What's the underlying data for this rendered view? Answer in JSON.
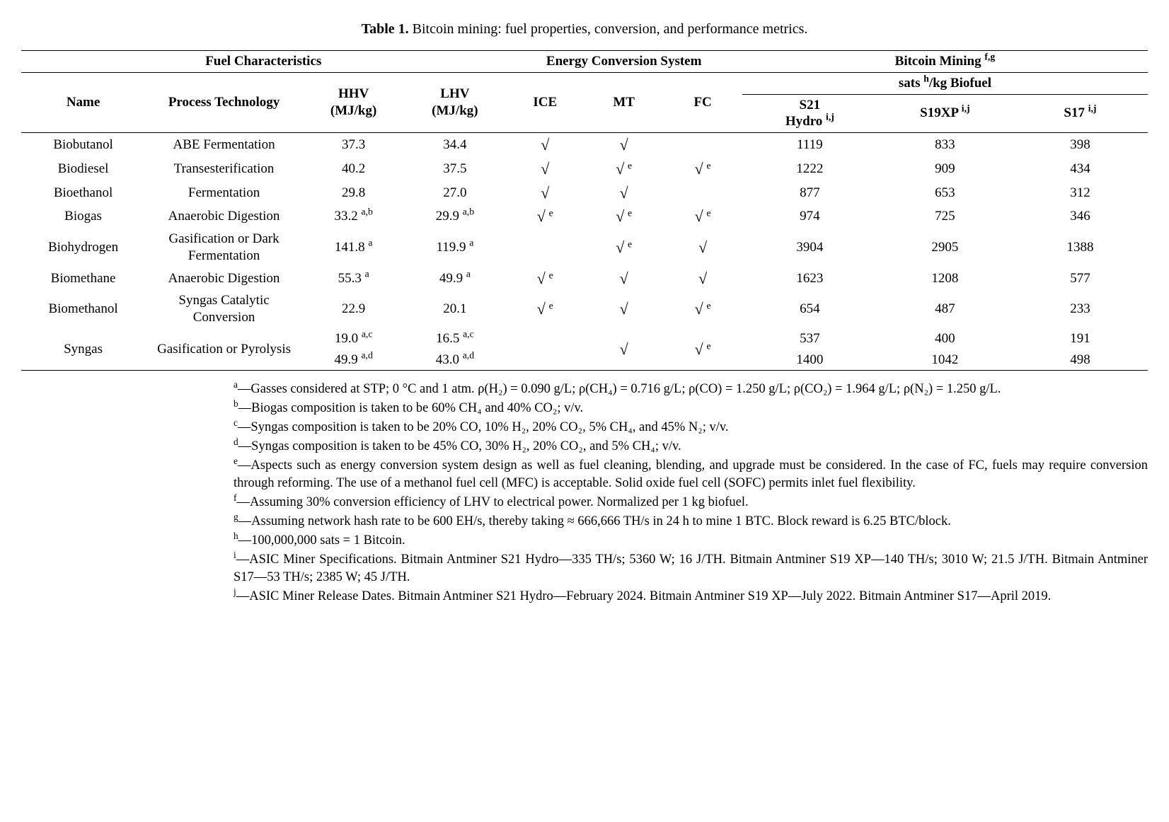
{
  "caption_label": "Table 1.",
  "caption_text": "Bitcoin mining: fuel properties, conversion, and performance metrics.",
  "section_headers": {
    "fuel": "Fuel Characteristics",
    "energy": "Energy Conversion System",
    "mining": "Bitcoin Mining",
    "mining_sup": "f,g",
    "sats": "sats",
    "sats_sup": "h",
    "sats_rest": "/kg Biofuel"
  },
  "col_headers": {
    "name": "Name",
    "process": "Process Technology",
    "hhv_l1": "HHV",
    "hhv_l2": "(MJ/kg)",
    "lhv_l1": "LHV",
    "lhv_l2": "(MJ/kg)",
    "ice": "ICE",
    "mt": "MT",
    "fc": "FC",
    "s21_l1": "S21",
    "s21_l2": "Hydro",
    "s21_sup": "i,j",
    "s19": "S19XP",
    "s19_sup": "i,j",
    "s17": "S17",
    "s17_sup": "i,j"
  },
  "check": "√",
  "rows": [
    {
      "name": "Biobutanol",
      "proc": "ABE Fermentation",
      "hhv": "37.3",
      "hhv_s": "",
      "lhv": "34.4",
      "lhv_s": "",
      "ice": "√",
      "ice_s": "",
      "mt": "√",
      "mt_s": "",
      "fc": "",
      "fc_s": "",
      "s21": "1119",
      "s19": "833",
      "s17": "398"
    },
    {
      "name": "Biodiesel",
      "proc": "Transesterification",
      "hhv": "40.2",
      "hhv_s": "",
      "lhv": "37.5",
      "lhv_s": "",
      "ice": "√",
      "ice_s": "",
      "mt": "√",
      "mt_s": "e",
      "fc": "√",
      "fc_s": "e",
      "s21": "1222",
      "s19": "909",
      "s17": "434"
    },
    {
      "name": "Bioethanol",
      "proc": "Fermentation",
      "hhv": "29.8",
      "hhv_s": "",
      "lhv": "27.0",
      "lhv_s": "",
      "ice": "√",
      "ice_s": "",
      "mt": "√",
      "mt_s": "",
      "fc": "",
      "fc_s": "",
      "s21": "877",
      "s19": "653",
      "s17": "312"
    },
    {
      "name": "Biogas",
      "proc": "Anaerobic Digestion",
      "hhv": "33.2",
      "hhv_s": "a,b",
      "lhv": "29.9",
      "lhv_s": "a,b",
      "ice": "√",
      "ice_s": "e",
      "mt": "√",
      "mt_s": "e",
      "fc": "√",
      "fc_s": "e",
      "s21": "974",
      "s19": "725",
      "s17": "346"
    },
    {
      "name": "Biohydrogen",
      "proc": "Gasification or Dark Fermentation",
      "hhv": "141.8",
      "hhv_s": "a",
      "lhv": "119.9",
      "lhv_s": "a",
      "ice": "",
      "ice_s": "",
      "mt": "√",
      "mt_s": "e",
      "fc": "√",
      "fc_s": "",
      "s21": "3904",
      "s19": "2905",
      "s17": "1388"
    },
    {
      "name": "Biomethane",
      "proc": "Anaerobic Digestion",
      "hhv": "55.3",
      "hhv_s": "a",
      "lhv": "49.9",
      "lhv_s": "a",
      "ice": "√",
      "ice_s": "e",
      "mt": "√",
      "mt_s": "",
      "fc": "√",
      "fc_s": "",
      "s21": "1623",
      "s19": "1208",
      "s17": "577"
    },
    {
      "name": "Biomethanol",
      "proc": "Syngas Catalytic Conversion",
      "hhv": "22.9",
      "hhv_s": "",
      "lhv": "20.1",
      "lhv_s": "",
      "ice": "√",
      "ice_s": "e",
      "mt": "√",
      "mt_s": "",
      "fc": "√",
      "fc_s": "e",
      "s21": "654",
      "s19": "487",
      "s17": "233"
    }
  ],
  "syngas": {
    "name": "Syngas",
    "proc": "Gasification or Pyrolysis",
    "hhv1": "19.0",
    "hhv1_s": "a,c",
    "lhv1": "16.5",
    "lhv1_s": "a,c",
    "hhv2": "49.9",
    "hhv2_s": "a,d",
    "lhv2": "43.0",
    "lhv2_s": "a,d",
    "mt": "√",
    "mt_s": "",
    "fc": "√",
    "fc_s": "e",
    "s21_1": "537",
    "s19_1": "400",
    "s17_1": "191",
    "s21_2": "1400",
    "s19_2": "1042",
    "s17_2": "498"
  },
  "footnotes": {
    "a": "—Gasses considered at STP; 0 °C and 1 atm. ρ(H₂) = 0.090 g/L; ρ(CH₄) = 0.716 g/L; ρ(CO) = 1.250 g/L; ρ(CO₂) = 1.964 g/L; ρ(N₂) = 1.250 g/L.",
    "b": "—Biogas composition is taken to be 60% CH₄ and 40% CO₂; v/v.",
    "c": "—Syngas composition is taken to be 20% CO, 10% H₂, 20% CO₂, 5% CH₄, and 45% N₂; v/v.",
    "d": "—Syngas composition is taken to be 45% CO, 30% H₂, 20% CO₂, and 5% CH₄; v/v.",
    "e": "—Aspects such as energy conversion system design as well as fuel cleaning, blending, and upgrade must be considered. In the case of FC, fuels may require conversion through reforming. The use of a methanol fuel cell (MFC) is acceptable. Solid oxide fuel cell (SOFC) permits inlet fuel flexibility.",
    "f": "—Assuming 30% conversion efficiency of LHV to electrical power. Normalized per 1 kg biofuel.",
    "g": "—Assuming network hash rate to be 600 EH/s, thereby taking ≈ 666,666 TH/s in 24 h to mine 1 BTC. Block reward is 6.25 BTC/block.",
    "h": "—100,000,000 sats = 1 Bitcoin.",
    "i": "—ASIC Miner Specifications. Bitmain Antminer S21 Hydro—335 TH/s; 5360 W; 16 J/TH. Bitmain Antminer S19 XP—140 TH/s; 3010 W; 21.5 J/TH. Bitmain Antminer S17—53 TH/s; 2385 W; 45 J/TH.",
    "j": "—ASIC Miner Release Dates. Bitmain Antminer S21 Hydro—February 2024. Bitmain Antminer S19 XP—July 2022. Bitmain Antminer S17—April 2019."
  }
}
